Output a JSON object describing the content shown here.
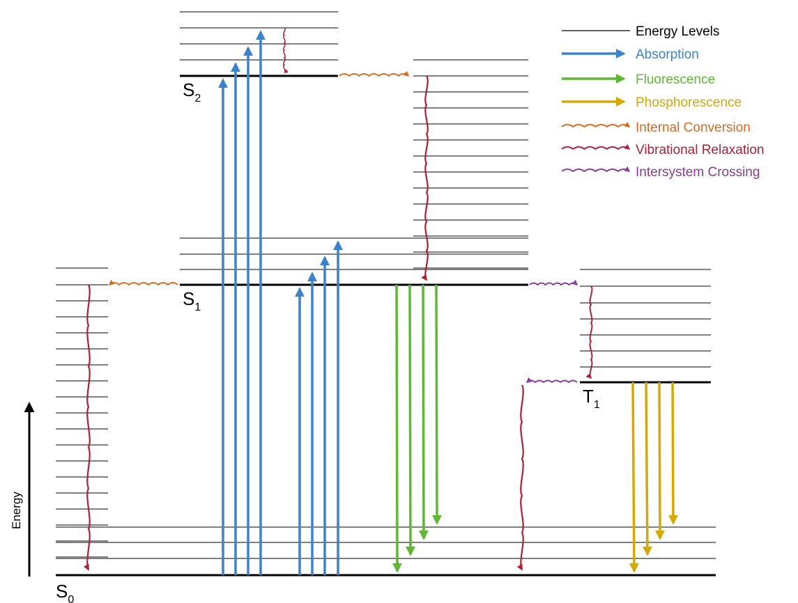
{
  "states": {
    "s0": {
      "main": "S",
      "sub": "0"
    },
    "s1": {
      "main": "S",
      "sub": "1"
    },
    "s2": {
      "main": "S",
      "sub": "2"
    },
    "t1": {
      "main": "T",
      "sub": "1"
    }
  },
  "axis": {
    "label": "Energy"
  },
  "legend": [
    {
      "key": "levels",
      "label": "Energy Levels",
      "color": "#000000"
    },
    {
      "key": "absorption",
      "label": "Absorption",
      "color": "#3a82d0"
    },
    {
      "key": "fluorescence",
      "label": "Fluorescence",
      "color": "#5db832"
    },
    {
      "key": "phosphorescence",
      "label": "Phosphorescence",
      "color": "#d6a800"
    },
    {
      "key": "internal",
      "label": "Internal Conversion",
      "color": "#dc6a1c"
    },
    {
      "key": "vibrational",
      "label": "Vibrational Relaxation",
      "color": "#b01f35"
    },
    {
      "key": "intersystem",
      "label": "Intersystem Crossing",
      "color": "#8a3a98"
    }
  ]
}
